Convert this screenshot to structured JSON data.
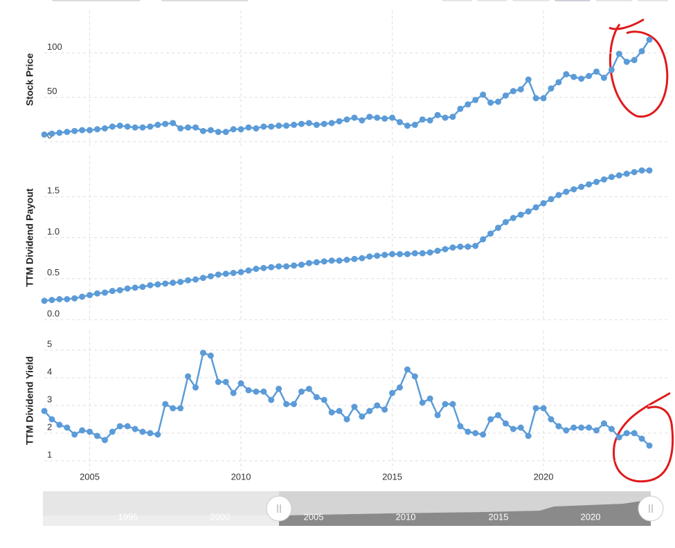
{
  "chart_data": [
    {
      "type": "line",
      "ylabel": "Stock Price",
      "color": "#5b9bd8",
      "x": [
        2003.5,
        2003.75,
        2004,
        2004.25,
        2004.5,
        2004.75,
        2005,
        2005.25,
        2005.5,
        2005.75,
        2006,
        2006.25,
        2006.5,
        2006.75,
        2007,
        2007.25,
        2007.5,
        2007.75,
        2008,
        2008.25,
        2008.5,
        2008.75,
        2009,
        2009.25,
        2009.5,
        2009.75,
        2010,
        2010.25,
        2010.5,
        2010.75,
        2011,
        2011.25,
        2011.5,
        2011.75,
        2012,
        2012.25,
        2012.5,
        2012.75,
        2013,
        2013.25,
        2013.5,
        2013.75,
        2014,
        2014.25,
        2014.5,
        2014.75,
        2015,
        2015.25,
        2015.5,
        2015.75,
        2016,
        2016.25,
        2016.5,
        2016.75,
        2017,
        2017.25,
        2017.5,
        2017.75,
        2018,
        2018.25,
        2018.5,
        2018.75,
        2019,
        2019.25,
        2019.5,
        2019.75,
        2020,
        2020.25,
        2020.5,
        2020.75,
        2021,
        2021.25,
        2021.5,
        2021.75,
        2022,
        2022.25,
        2022.5,
        2022.75,
        2023,
        2023.25,
        2023.5
      ],
      "values": [
        8,
        9,
        10,
        11,
        12,
        13,
        13,
        14,
        15,
        17,
        18,
        17,
        16,
        16,
        17,
        19,
        20,
        21,
        15,
        16,
        16,
        12,
        13,
        11,
        11,
        14,
        14,
        16,
        15,
        17,
        17,
        18,
        18,
        19,
        20,
        21,
        19,
        20,
        21,
        23,
        25,
        27,
        24,
        28,
        27,
        26,
        27,
        22,
        18,
        19,
        25,
        24,
        30,
        27,
        28,
        37,
        42,
        47,
        53,
        44,
        45,
        52,
        57,
        59,
        70,
        49,
        49,
        60,
        67,
        76,
        73,
        71,
        74,
        79,
        72,
        81,
        99,
        90,
        92,
        102,
        115
      ],
      "xlim": [
        2003.5,
        2023.5
      ],
      "ylim": [
        -8,
        148
      ],
      "yticks": [
        0,
        50,
        100
      ],
      "grid": true
    },
    {
      "type": "line",
      "ylabel": "TTM Dividend Payout",
      "color": "#5b9bd8",
      "x": [
        2003.5,
        2003.75,
        2004,
        2004.25,
        2004.5,
        2004.75,
        2005,
        2005.25,
        2005.5,
        2005.75,
        2006,
        2006.25,
        2006.5,
        2006.75,
        2007,
        2007.25,
        2007.5,
        2007.75,
        2008,
        2008.25,
        2008.5,
        2008.75,
        2009,
        2009.25,
        2009.5,
        2009.75,
        2010,
        2010.25,
        2010.5,
        2010.75,
        2011,
        2011.25,
        2011.5,
        2011.75,
        2012,
        2012.25,
        2012.5,
        2012.75,
        2013,
        2013.25,
        2013.5,
        2013.75,
        2014,
        2014.25,
        2014.5,
        2014.75,
        2015,
        2015.25,
        2015.5,
        2015.75,
        2016,
        2016.25,
        2016.5,
        2016.75,
        2017,
        2017.25,
        2017.5,
        2017.75,
        2018,
        2018.25,
        2018.5,
        2018.75,
        2019,
        2019.25,
        2019.5,
        2019.75,
        2020,
        2020.25,
        2020.5,
        2020.75,
        2021,
        2021.25,
        2021.5,
        2021.75,
        2022,
        2022.25,
        2022.5,
        2022.75,
        2023,
        2023.25,
        2023.5
      ],
      "values": [
        0.23,
        0.24,
        0.25,
        0.25,
        0.26,
        0.28,
        0.3,
        0.32,
        0.33,
        0.35,
        0.36,
        0.38,
        0.39,
        0.4,
        0.42,
        0.43,
        0.44,
        0.45,
        0.46,
        0.48,
        0.49,
        0.51,
        0.53,
        0.55,
        0.56,
        0.57,
        0.58,
        0.6,
        0.62,
        0.63,
        0.64,
        0.65,
        0.65,
        0.66,
        0.67,
        0.69,
        0.7,
        0.71,
        0.72,
        0.72,
        0.73,
        0.74,
        0.75,
        0.77,
        0.78,
        0.79,
        0.8,
        0.8,
        0.8,
        0.81,
        0.81,
        0.82,
        0.84,
        0.86,
        0.88,
        0.89,
        0.89,
        0.9,
        0.98,
        1.05,
        1.12,
        1.19,
        1.24,
        1.28,
        1.32,
        1.37,
        1.42,
        1.47,
        1.52,
        1.56,
        1.59,
        1.62,
        1.65,
        1.68,
        1.71,
        1.74,
        1.76,
        1.78,
        1.8,
        1.82,
        1.82
      ],
      "xlim": [
        2003.5,
        2023.5
      ],
      "ylim": [
        0,
        2.0
      ],
      "yticks": [
        {
          "value": 0,
          "label": "0.0"
        },
        {
          "value": 0.5,
          "label": "0.5"
        },
        {
          "value": 1,
          "label": "1.0"
        },
        {
          "value": 1.5,
          "label": "1.5"
        }
      ],
      "grid": true
    },
    {
      "type": "line",
      "ylabel": "TTM Dividend Yield",
      "color": "#5b9bd8",
      "x": [
        2003.5,
        2003.75,
        2004,
        2004.25,
        2004.5,
        2004.75,
        2005,
        2005.25,
        2005.5,
        2005.75,
        2006,
        2006.25,
        2006.5,
        2006.75,
        2007,
        2007.25,
        2007.5,
        2007.75,
        2008,
        2008.25,
        2008.5,
        2008.75,
        2009,
        2009.25,
        2009.5,
        2009.75,
        2010,
        2010.25,
        2010.5,
        2010.75,
        2011,
        2011.25,
        2011.5,
        2011.75,
        2012,
        2012.25,
        2012.5,
        2012.75,
        2013,
        2013.25,
        2013.5,
        2013.75,
        2014,
        2014.25,
        2014.5,
        2014.75,
        2015,
        2015.25,
        2015.5,
        2015.75,
        2016,
        2016.25,
        2016.5,
        2016.75,
        2017,
        2017.25,
        2017.5,
        2017.75,
        2018,
        2018.25,
        2018.5,
        2018.75,
        2019,
        2019.25,
        2019.5,
        2019.75,
        2020,
        2020.25,
        2020.5,
        2020.75,
        2021,
        2021.25,
        2021.5,
        2021.75,
        2022,
        2022.25,
        2022.5,
        2022.75,
        2023,
        2023.25,
        2023.5
      ],
      "values": [
        2.8,
        2.5,
        2.3,
        2.2,
        1.95,
        2.1,
        2.05,
        1.9,
        1.75,
        2.05,
        2.25,
        2.25,
        2.15,
        2.05,
        2.0,
        1.95,
        3.05,
        2.9,
        2.9,
        4.05,
        3.65,
        4.9,
        4.8,
        3.85,
        3.85,
        3.45,
        3.8,
        3.55,
        3.5,
        3.5,
        3.2,
        3.6,
        3.05,
        3.05,
        3.5,
        3.6,
        3.3,
        3.2,
        2.75,
        2.8,
        2.5,
        2.95,
        2.6,
        2.8,
        3.0,
        2.85,
        3.45,
        3.65,
        4.3,
        4.05,
        3.1,
        3.25,
        2.65,
        3.05,
        3.05,
        2.25,
        2.05,
        2.0,
        1.95,
        2.5,
        2.65,
        2.35,
        2.15,
        2.2,
        1.9,
        2.9,
        2.9,
        2.5,
        2.25,
        2.1,
        2.2,
        2.2,
        2.2,
        2.1,
        2.35,
        2.15,
        1.85,
        2.0,
        2.0,
        1.8,
        1.55
      ],
      "xlim": [
        2003.5,
        2023.5
      ],
      "ylim": [
        0.65,
        5.7
      ],
      "yticks": [
        1,
        2,
        3,
        4,
        5
      ],
      "xticks": [
        2005,
        2010,
        2015,
        2020
      ],
      "grid": true
    }
  ],
  "navigator": {
    "labels": [
      "1995",
      "2000",
      "2005",
      "2010",
      "2015",
      "2020"
    ]
  }
}
